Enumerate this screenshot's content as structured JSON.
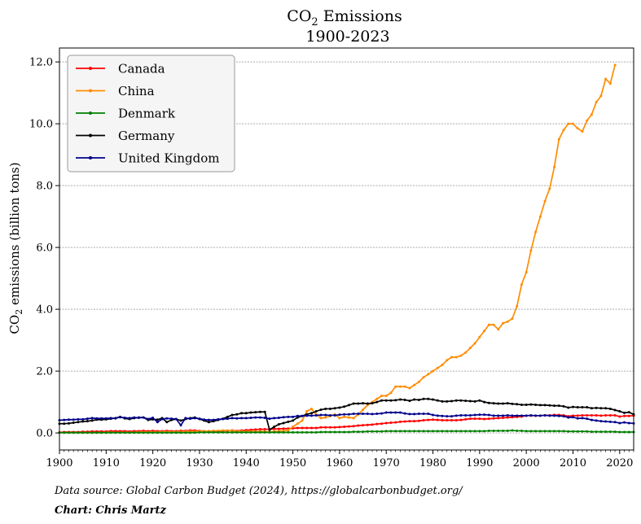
{
  "chart_data": {
    "type": "line",
    "title_parts": [
      "CO",
      "2",
      " Emissions"
    ],
    "subtitle": "1900-2023",
    "xlabel": "",
    "ylabel_parts": [
      "CO",
      "2",
      " emissions (billion tons)"
    ],
    "xlim": [
      1900,
      2023
    ],
    "ylim": [
      -0.55,
      12.45
    ],
    "x_ticks": [
      1900,
      1910,
      1920,
      1930,
      1940,
      1950,
      1960,
      1970,
      1980,
      1990,
      2000,
      2010,
      2020
    ],
    "y_ticks": [
      0,
      2,
      4,
      6,
      8,
      10,
      12
    ],
    "y_tick_labels": [
      "0.0",
      "2.0",
      "4.0",
      "6.0",
      "8.0",
      "10.0",
      "12.0"
    ],
    "grid": "horizontal dashed",
    "legend_position": "top-left",
    "footer": {
      "source": "Data source: Global Carbon Budget (2024), https://globalcarbonbudget.org/",
      "credit": "Chart: Chris Martz"
    },
    "series": [
      {
        "name": "Canada",
        "color": "#ff0000",
        "start_year": 1900,
        "values": [
          0.02,
          0.03,
          0.03,
          0.03,
          0.03,
          0.04,
          0.04,
          0.05,
          0.05,
          0.05,
          0.05,
          0.06,
          0.06,
          0.06,
          0.06,
          0.05,
          0.06,
          0.06,
          0.07,
          0.06,
          0.07,
          0.06,
          0.06,
          0.07,
          0.06,
          0.06,
          0.07,
          0.07,
          0.08,
          0.08,
          0.07,
          0.06,
          0.06,
          0.06,
          0.06,
          0.07,
          0.07,
          0.08,
          0.07,
          0.08,
          0.09,
          0.1,
          0.11,
          0.12,
          0.12,
          0.12,
          0.13,
          0.13,
          0.14,
          0.14,
          0.15,
          0.16,
          0.16,
          0.16,
          0.16,
          0.16,
          0.18,
          0.18,
          0.18,
          0.18,
          0.19,
          0.2,
          0.21,
          0.22,
          0.24,
          0.25,
          0.26,
          0.27,
          0.29,
          0.3,
          0.32,
          0.33,
          0.34,
          0.36,
          0.37,
          0.38,
          0.38,
          0.39,
          0.41,
          0.42,
          0.43,
          0.42,
          0.41,
          0.41,
          0.41,
          0.41,
          0.42,
          0.44,
          0.46,
          0.46,
          0.46,
          0.45,
          0.46,
          0.47,
          0.48,
          0.49,
          0.5,
          0.51,
          0.52,
          0.53,
          0.56,
          0.56,
          0.56,
          0.56,
          0.57,
          0.57,
          0.58,
          0.58,
          0.57,
          0.54,
          0.56,
          0.56,
          0.57,
          0.57,
          0.57,
          0.57,
          0.56,
          0.57,
          0.57,
          0.57,
          0.53,
          0.55,
          0.55,
          0.56
        ]
      },
      {
        "name": "China",
        "color": "#ff8c00",
        "start_year": 1900,
        "values": [
          0.01,
          0.01,
          0.01,
          0.01,
          0.01,
          0.01,
          0.01,
          0.01,
          0.01,
          0.01,
          0.02,
          0.02,
          0.02,
          0.02,
          0.02,
          0.02,
          0.02,
          0.03,
          0.03,
          0.03,
          0.03,
          0.03,
          0.04,
          0.04,
          0.04,
          0.04,
          0.04,
          0.05,
          0.05,
          0.05,
          0.06,
          0.06,
          0.06,
          0.07,
          0.07,
          0.08,
          0.08,
          0.07,
          0.06,
          0.06,
          0.05,
          0.05,
          0.05,
          0.05,
          0.05,
          0.03,
          0.05,
          0.06,
          0.07,
          0.09,
          0.2,
          0.3,
          0.4,
          0.7,
          0.78,
          0.6,
          0.48,
          0.5,
          0.55,
          0.6,
          0.48,
          0.52,
          0.5,
          0.48,
          0.6,
          0.75,
          0.9,
          1.0,
          1.1,
          1.2,
          1.2,
          1.3,
          1.5,
          1.5,
          1.5,
          1.45,
          1.55,
          1.65,
          1.8,
          1.9,
          2.0,
          2.1,
          2.2,
          2.35,
          2.45,
          2.45,
          2.5,
          2.6,
          2.75,
          2.9,
          3.1,
          3.3,
          3.5,
          3.5,
          3.35,
          3.55,
          3.6,
          3.7,
          4.1,
          4.8,
          5.2,
          5.9,
          6.5,
          7.0,
          7.5,
          7.9,
          8.6,
          9.5,
          9.8,
          10.0,
          10.0,
          9.85,
          9.75,
          10.1,
          10.3,
          10.7,
          10.9,
          11.45,
          11.3,
          11.9
        ]
      },
      {
        "name": "Denmark",
        "color": "#008000",
        "start_year": 1900,
        "values": [
          0.01,
          0.01,
          0.01,
          0.01,
          0.01,
          0.01,
          0.01,
          0.01,
          0.01,
          0.01,
          0.01,
          0.01,
          0.01,
          0.01,
          0.01,
          0.01,
          0.01,
          0.01,
          0.01,
          0.01,
          0.01,
          0.01,
          0.01,
          0.01,
          0.01,
          0.01,
          0.01,
          0.01,
          0.01,
          0.01,
          0.02,
          0.02,
          0.02,
          0.02,
          0.02,
          0.02,
          0.02,
          0.02,
          0.02,
          0.02,
          0.02,
          0.02,
          0.02,
          0.02,
          0.02,
          0.02,
          0.02,
          0.02,
          0.02,
          0.02,
          0.02,
          0.02,
          0.02,
          0.02,
          0.02,
          0.02,
          0.03,
          0.03,
          0.03,
          0.03,
          0.03,
          0.03,
          0.03,
          0.04,
          0.04,
          0.04,
          0.05,
          0.05,
          0.05,
          0.05,
          0.06,
          0.06,
          0.06,
          0.06,
          0.06,
          0.06,
          0.06,
          0.06,
          0.06,
          0.06,
          0.06,
          0.06,
          0.06,
          0.06,
          0.06,
          0.06,
          0.06,
          0.06,
          0.06,
          0.06,
          0.06,
          0.06,
          0.07,
          0.07,
          0.07,
          0.07,
          0.07,
          0.08,
          0.07,
          0.07,
          0.06,
          0.06,
          0.06,
          0.06,
          0.06,
          0.06,
          0.06,
          0.06,
          0.06,
          0.05,
          0.05,
          0.05,
          0.05,
          0.05,
          0.04,
          0.04,
          0.04,
          0.04,
          0.04,
          0.04,
          0.03,
          0.03,
          0.03,
          0.03
        ]
      },
      {
        "name": "Germany",
        "color": "#000000",
        "start_year": 1900,
        "values": [
          0.3,
          0.3,
          0.31,
          0.33,
          0.35,
          0.37,
          0.38,
          0.4,
          0.43,
          0.43,
          0.44,
          0.46,
          0.48,
          0.52,
          0.47,
          0.45,
          0.48,
          0.5,
          0.5,
          0.42,
          0.44,
          0.43,
          0.48,
          0.35,
          0.42,
          0.45,
          0.4,
          0.45,
          0.48,
          0.5,
          0.45,
          0.4,
          0.35,
          0.38,
          0.42,
          0.46,
          0.52,
          0.58,
          0.6,
          0.64,
          0.64,
          0.66,
          0.67,
          0.68,
          0.68,
          0.1,
          0.2,
          0.28,
          0.32,
          0.36,
          0.4,
          0.5,
          0.55,
          0.6,
          0.64,
          0.7,
          0.75,
          0.78,
          0.78,
          0.8,
          0.82,
          0.85,
          0.9,
          0.95,
          0.95,
          0.96,
          0.95,
          0.96,
          1.0,
          1.05,
          1.05,
          1.05,
          1.06,
          1.08,
          1.07,
          1.04,
          1.08,
          1.07,
          1.1,
          1.1,
          1.08,
          1.05,
          1.02,
          1.02,
          1.03,
          1.05,
          1.05,
          1.04,
          1.03,
          1.02,
          1.05,
          1.0,
          0.97,
          0.96,
          0.95,
          0.95,
          0.96,
          0.94,
          0.93,
          0.91,
          0.91,
          0.92,
          0.91,
          0.9,
          0.9,
          0.89,
          0.88,
          0.88,
          0.86,
          0.82,
          0.84,
          0.83,
          0.83,
          0.83,
          0.8,
          0.81,
          0.8,
          0.8,
          0.78,
          0.74,
          0.7,
          0.65,
          0.67,
          0.6
        ]
      },
      {
        "name": "United Kingdom",
        "color": "#00008b",
        "start_year": 1900,
        "values": [
          0.41,
          0.42,
          0.43,
          0.43,
          0.44,
          0.44,
          0.46,
          0.48,
          0.47,
          0.47,
          0.47,
          0.48,
          0.47,
          0.51,
          0.49,
          0.48,
          0.5,
          0.49,
          0.5,
          0.45,
          0.49,
          0.35,
          0.45,
          0.47,
          0.46,
          0.45,
          0.25,
          0.48,
          0.46,
          0.48,
          0.46,
          0.43,
          0.42,
          0.42,
          0.44,
          0.45,
          0.46,
          0.48,
          0.47,
          0.48,
          0.48,
          0.49,
          0.5,
          0.5,
          0.49,
          0.46,
          0.48,
          0.49,
          0.51,
          0.52,
          0.52,
          0.55,
          0.55,
          0.56,
          0.56,
          0.57,
          0.58,
          0.58,
          0.57,
          0.57,
          0.59,
          0.6,
          0.6,
          0.62,
          0.62,
          0.62,
          0.62,
          0.61,
          0.62,
          0.63,
          0.66,
          0.66,
          0.66,
          0.66,
          0.63,
          0.61,
          0.61,
          0.62,
          0.62,
          0.62,
          0.58,
          0.56,
          0.55,
          0.54,
          0.54,
          0.56,
          0.57,
          0.57,
          0.57,
          0.58,
          0.59,
          0.59,
          0.58,
          0.56,
          0.56,
          0.56,
          0.57,
          0.56,
          0.56,
          0.56,
          0.56,
          0.57,
          0.56,
          0.56,
          0.57,
          0.56,
          0.56,
          0.55,
          0.54,
          0.5,
          0.51,
          0.47,
          0.48,
          0.46,
          0.42,
          0.4,
          0.38,
          0.37,
          0.36,
          0.35,
          0.32,
          0.34,
          0.32,
          0.31
        ]
      }
    ]
  }
}
